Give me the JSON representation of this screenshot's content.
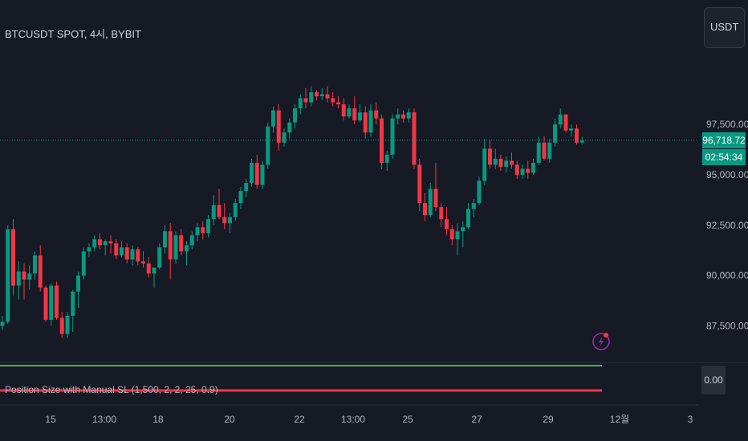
{
  "header": {
    "symbol": "BTCUSDT SPOT, 4시, BYBIT",
    "currency": "USDT"
  },
  "price_badges": {
    "last_price": "96,718.72",
    "countdown": "02:54:34"
  },
  "indicator": {
    "label": "Position Size with Manual SL (1,500, 2, 2, 25, 0.9)",
    "value": "0.00"
  },
  "colors": {
    "background": "#161a25",
    "up": "#089981",
    "down": "#f23645",
    "grid_text": "#b2b5be",
    "indicator_upper": "#4caf50",
    "indicator_lower": "#f23645",
    "flash_icon": "#9c27b0"
  },
  "icons": {
    "alert": "lightning-icon"
  },
  "chart_data": {
    "type": "candlestick",
    "symbol": "BTCUSDT SPOT",
    "timeframe": "4시",
    "exchange": "BYBIT",
    "y_ticks": [
      87500,
      90000,
      92500,
      95000,
      97500
    ],
    "y_tick_labels": [
      "87,500.00",
      "90,000.00",
      "92,500.00",
      "95,000.00",
      "97,500.00"
    ],
    "x_tick_labels": [
      "15",
      "13:00",
      "18",
      "20",
      "22",
      "13:00",
      "25",
      "27",
      "29",
      "12월",
      "3"
    ],
    "last_price": 96718.72,
    "candles": [
      [
        87500,
        88000,
        87300,
        87700
      ],
      [
        87700,
        92500,
        87600,
        92300
      ],
      [
        92300,
        92800,
        89000,
        89500
      ],
      [
        89500,
        90700,
        88800,
        90200
      ],
      [
        90200,
        90600,
        88800,
        89800
      ],
      [
        89800,
        90500,
        89300,
        90100
      ],
      [
        90100,
        91200,
        89800,
        91000
      ],
      [
        91000,
        91500,
        89200,
        89400
      ],
      [
        89400,
        89500,
        87700,
        87800
      ],
      [
        87800,
        89600,
        87500,
        89500
      ],
      [
        89500,
        89700,
        87800,
        87900
      ],
      [
        87900,
        88200,
        86900,
        87100
      ],
      [
        87100,
        88200,
        86900,
        88000
      ],
      [
        88000,
        89300,
        87200,
        89200
      ],
      [
        89200,
        90200,
        88400,
        90000
      ],
      [
        90000,
        91400,
        89800,
        91200
      ],
      [
        91200,
        91600,
        90900,
        91400
      ],
      [
        91400,
        92000,
        91200,
        91800
      ],
      [
        91800,
        92100,
        91300,
        91500
      ],
      [
        91500,
        91800,
        91000,
        91700
      ],
      [
        91700,
        92000,
        91100,
        91600
      ],
      [
        91600,
        91800,
        90800,
        91000
      ],
      [
        91000,
        91700,
        90900,
        91400
      ],
      [
        91400,
        91600,
        90600,
        90800
      ],
      [
        90800,
        91500,
        90500,
        91300
      ],
      [
        91300,
        91400,
        90500,
        90700
      ],
      [
        90700,
        91200,
        90400,
        90600
      ],
      [
        90600,
        90900,
        89900,
        90100
      ],
      [
        90100,
        90400,
        89400,
        90400
      ],
      [
        90400,
        91600,
        90300,
        91400
      ],
      [
        91400,
        92500,
        91100,
        92200
      ],
      [
        92200,
        92600,
        89800,
        90800
      ],
      [
        90800,
        92200,
        90600,
        92000
      ],
      [
        92000,
        92300,
        91000,
        91200
      ],
      [
        91200,
        91700,
        90500,
        91500
      ],
      [
        91500,
        92200,
        91300,
        92000
      ],
      [
        92000,
        92600,
        91700,
        92400
      ],
      [
        92400,
        92700,
        91800,
        92100
      ],
      [
        92100,
        93000,
        91900,
        92800
      ],
      [
        92800,
        94000,
        92500,
        93500
      ],
      [
        93500,
        94300,
        92800,
        92900
      ],
      [
        92900,
        93600,
        92300,
        92600
      ],
      [
        92600,
        93100,
        92100,
        92900
      ],
      [
        92900,
        93800,
        92700,
        93600
      ],
      [
        93600,
        94400,
        93300,
        94200
      ],
      [
        94200,
        94800,
        93900,
        94600
      ],
      [
        94600,
        95800,
        94400,
        95600
      ],
      [
        95600,
        96000,
        94300,
        94500
      ],
      [
        94500,
        95700,
        94300,
        95500
      ],
      [
        95500,
        97600,
        95300,
        97400
      ],
      [
        97400,
        98400,
        97100,
        98200
      ],
      [
        98200,
        98500,
        96200,
        96600
      ],
      [
        96600,
        97300,
        96400,
        97100
      ],
      [
        97100,
        97800,
        96800,
        97600
      ],
      [
        97600,
        98500,
        97300,
        98300
      ],
      [
        98300,
        99000,
        98000,
        98800
      ],
      [
        98800,
        99300,
        98300,
        98600
      ],
      [
        98600,
        99400,
        98400,
        99100
      ],
      [
        99100,
        99200,
        98700,
        98900
      ],
      [
        98900,
        99300,
        98700,
        99000
      ],
      [
        99000,
        99400,
        98600,
        98800
      ],
      [
        98800,
        99100,
        98400,
        98600
      ],
      [
        98600,
        98900,
        98300,
        98500
      ],
      [
        98500,
        98800,
        97700,
        97900
      ],
      [
        97900,
        98500,
        97800,
        98300
      ],
      [
        98300,
        98900,
        97500,
        97700
      ],
      [
        97700,
        98500,
        97600,
        98100
      ],
      [
        98100,
        98400,
        96800,
        97100
      ],
      [
        97100,
        98500,
        96900,
        98200
      ],
      [
        98200,
        98600,
        97500,
        97800
      ],
      [
        97800,
        98000,
        95300,
        95600
      ],
      [
        95600,
        96200,
        95200,
        96000
      ],
      [
        96000,
        98000,
        95800,
        97800
      ],
      [
        97800,
        98300,
        97500,
        98000
      ],
      [
        98000,
        98200,
        97600,
        97800
      ],
      [
        97800,
        98300,
        97600,
        98100
      ],
      [
        98100,
        98300,
        95300,
        95500
      ],
      [
        95500,
        95800,
        93200,
        93600
      ],
      [
        93600,
        94100,
        92700,
        93000
      ],
      [
        93000,
        94600,
        92900,
        94300
      ],
      [
        94300,
        95600,
        93200,
        93400
      ],
      [
        93400,
        93600,
        92400,
        92800
      ],
      [
        92800,
        93400,
        92000,
        92300
      ],
      [
        92300,
        92500,
        91500,
        91800
      ],
      [
        91800,
        92600,
        91000,
        92200
      ],
      [
        92200,
        92700,
        91400,
        92400
      ],
      [
        92400,
        93600,
        92300,
        93300
      ],
      [
        93300,
        93800,
        92900,
        93600
      ],
      [
        93600,
        94900,
        93500,
        94700
      ],
      [
        94700,
        96800,
        94500,
        96300
      ],
      [
        96300,
        96700,
        95300,
        95500
      ],
      [
        95500,
        96300,
        95300,
        95800
      ],
      [
        95800,
        96000,
        95200,
        95400
      ],
      [
        95400,
        95900,
        95100,
        95700
      ],
      [
        95700,
        96100,
        95300,
        95500
      ],
      [
        95500,
        95700,
        94800,
        95000
      ],
      [
        95000,
        95500,
        94800,
        95300
      ],
      [
        95300,
        95700,
        94800,
        95100
      ],
      [
        95100,
        95800,
        95000,
        95600
      ],
      [
        95600,
        96900,
        95500,
        96600
      ],
      [
        96600,
        96900,
        95700,
        95800
      ],
      [
        95800,
        96800,
        95600,
        96600
      ],
      [
        96600,
        97800,
        96400,
        97500
      ],
      [
        97500,
        98300,
        97300,
        98000
      ],
      [
        98000,
        98000,
        97100,
        97200
      ],
      [
        97200,
        97500,
        96900,
        97300
      ],
      [
        97300,
        97500,
        96500,
        96600
      ],
      [
        96600,
        96900,
        96500,
        96700
      ]
    ]
  }
}
